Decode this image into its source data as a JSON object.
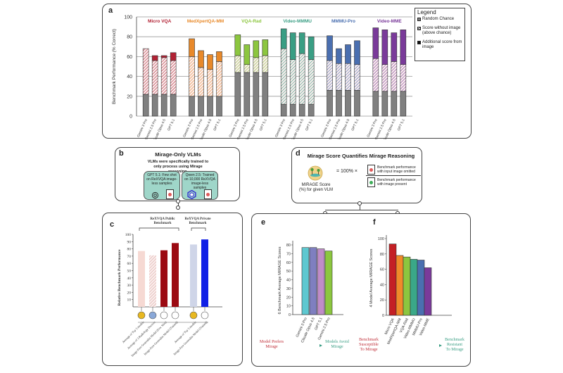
{
  "panel_a": {
    "letter": "a",
    "legend": {
      "title": "Legend",
      "items": [
        {
          "label": "Random Chance",
          "color": "#808080"
        },
        {
          "label": "Score without image (above chance)",
          "color": "hatched"
        },
        {
          "label": "Additional score from image",
          "color": "#111111"
        }
      ]
    }
  },
  "panel_b": {
    "letter": "b",
    "title": "Mirage-Only VLMs",
    "subtitle": "VLMs were specifically trained to only process using Mirage reasoning.",
    "boxes": [
      {
        "text": "GPT 5.1: Few shot on ReXVQA image-less samples",
        "icon": "openai-logo-icon"
      },
      {
        "text": "Qwen 2.5: Trained on 10,000 ReXVQA image-less samples",
        "icon": "qwen-logo-icon"
      }
    ]
  },
  "panel_d": {
    "letter": "d",
    "title": "Mirage Score Quantifies Mirage Reasoning",
    "score_label": "MIRAGE Score (%) for given VLM",
    "equals": "= 100% ×",
    "numerator": "Benchmark performance with input image omitted",
    "denominator": "Benchmark performance with image present"
  },
  "panel_e_arrow": {
    "left": "Model Prefers Mirage",
    "right": "Models Avoid Mirage"
  },
  "panel_f_arrow": {
    "left": "Benchmark Susceptible To Mirage",
    "right": "Benchmark Resistant To Mirage"
  },
  "panel_c_labels": {
    "letter": "c",
    "group1": "ReXVQA Public Benchmark",
    "group2": "ReXVQA Private Benchmark"
  },
  "chart_data": [
    {
      "id": "a",
      "type": "bar",
      "stacked": true,
      "ylabel": "Benchmark Performance (% Correct)",
      "ylim": [
        0,
        100
      ],
      "yticks": [
        0,
        20,
        40,
        60,
        80,
        100
      ],
      "grid": true,
      "legend_position": "top-right",
      "models": [
        "Gemini 3 Pro",
        "Gemini 2.5 Pro",
        "Claude Opus 4.5",
        "GPT 5.1"
      ],
      "series_names": [
        "Random Chance",
        "Score without image (above chance)",
        "Additional score from image"
      ],
      "groups": [
        {
          "name": "Micro VQA",
          "color": "#b22234",
          "random": [
            22,
            22,
            22,
            22
          ],
          "no_image_total": [
            68,
            56,
            59,
            56
          ],
          "total": [
            68,
            61,
            61,
            64
          ]
        },
        {
          "name": "MedXpertQA-MM",
          "color": "#e8892a",
          "random": [
            20,
            20,
            20,
            20
          ],
          "no_image_total": [
            60,
            49,
            47,
            55
          ],
          "total": [
            78,
            66,
            62,
            65
          ]
        },
        {
          "name": "VQA-Rad",
          "color": "#8cc63f",
          "random": [
            44,
            44,
            44,
            44
          ],
          "no_image_total": [
            61,
            52,
            59,
            61
          ],
          "total": [
            82,
            72,
            76,
            77
          ]
        },
        {
          "name": "Video-MMMU",
          "color": "#3a9e84",
          "random": [
            12,
            12,
            12,
            12
          ],
          "no_image_total": [
            68,
            57,
            63,
            57
          ],
          "total": [
            88,
            84,
            84,
            80
          ]
        },
        {
          "name": "MMMU-Pro",
          "color": "#4a6fb0",
          "random": [
            26,
            26,
            26,
            26
          ],
          "no_image_total": [
            56,
            53,
            53,
            52
          ],
          "total": [
            81,
            68,
            72,
            76
          ]
        },
        {
          "name": "Video-MME",
          "color": "#7a3a9a",
          "random": [
            25,
            25,
            25,
            25
          ],
          "no_image_total": [
            58,
            52,
            55,
            52
          ],
          "total": [
            89,
            87,
            84,
            87
          ]
        }
      ]
    },
    {
      "id": "c",
      "type": "bar",
      "ylabel": "Relative Benchmark Performance",
      "ylim": [
        0,
        100
      ],
      "yticks": [
        10,
        20,
        30,
        40,
        50,
        60,
        70,
        80,
        90,
        100
      ],
      "categories": [
        "Average of Top 3 models",
        "Average of 3 Radiology Doctors",
        "Image-Free Generalist Model (Few Shot)",
        "Image-Free Generalist Model (Trained)",
        "Average of Top 3 models",
        "Image-Free Generalist Model (Trained)"
      ],
      "groups": [
        "ReXVQA Public Benchmark",
        "ReXVQA Public Benchmark",
        "ReXVQA Public Benchmark",
        "ReXVQA Public Benchmark",
        "ReXVQA Private Benchmark",
        "ReXVQA Private Benchmark"
      ],
      "values": [
        77,
        71,
        78,
        88,
        86,
        93
      ],
      "colors": [
        "#f6d9d3",
        "hatched",
        "#9b0a12",
        "#9b0a12",
        "#cfd5e8",
        "#1020e6"
      ]
    },
    {
      "id": "e",
      "type": "bar",
      "ylabel": "6 Benchmark Average MIRAGE Scores",
      "ylim": [
        0,
        85
      ],
      "yticks": [
        0,
        10,
        20,
        30,
        40,
        50,
        60,
        70,
        80
      ],
      "categories": [
        "Gemini 3 Pro",
        "Claude Opus 4.5",
        "GPT 5.1",
        "Gemini 2.5 Pro"
      ],
      "values": [
        77,
        77,
        75.5,
        73
      ],
      "colors": [
        "#5ec8d0",
        "#7f7fc0",
        "#c08cc8",
        "#8cc63f"
      ]
    },
    {
      "id": "f",
      "type": "bar",
      "ylabel": "4 Model Average MIRAGE Scores",
      "ylim": [
        0,
        100
      ],
      "yticks": [
        0,
        20,
        40,
        60,
        80,
        100
      ],
      "categories": [
        "Micro VQA",
        "MedXpertQA-MM",
        "VQA-Rad",
        "Video-MMMU",
        "MMMU-Pro",
        "Video-MME"
      ],
      "values": [
        93,
        78,
        76,
        73,
        72,
        62
      ],
      "colors": [
        "#c42025",
        "#f08a2a",
        "#8cc63f",
        "#3aa888",
        "#4a6fb0",
        "#7a3a9a"
      ]
    }
  ]
}
